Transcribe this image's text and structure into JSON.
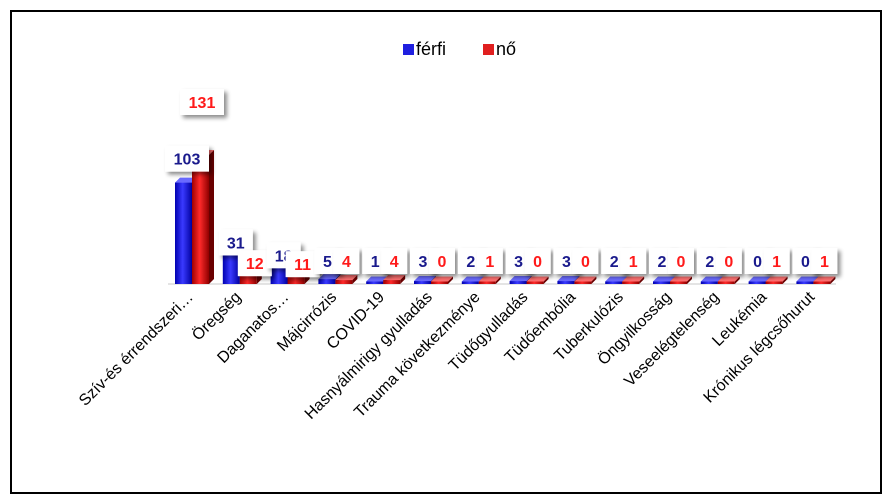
{
  "chart_data": {
    "type": "bar",
    "categories": [
      "Szív-és érrendszeri…",
      "Öregség",
      "Daganatos…",
      "Májcirrózis",
      "COVID-19",
      "Hasnyálmirigy gyulladás",
      "Trauma következménye",
      "Tüdőgyulladás",
      "Tüdőembólia",
      "Tuberkulózis",
      "Öngyilkosság",
      "Veseelégtelenség",
      "Leukémia",
      "Krónikus légcsőhurut"
    ],
    "series": [
      {
        "name": "férfi",
        "color": "#1f1fe0",
        "values": [
          103,
          31,
          18,
          5,
          1,
          3,
          2,
          3,
          3,
          2,
          2,
          2,
          0,
          0
        ]
      },
      {
        "name": "nő",
        "color": "#e01f1f",
        "values": [
          131,
          12,
          11,
          4,
          4,
          0,
          1,
          0,
          0,
          1,
          0,
          0,
          1,
          1
        ]
      }
    ],
    "ylim": [
      0,
      131
    ],
    "legend": "top-center",
    "grid": false
  }
}
